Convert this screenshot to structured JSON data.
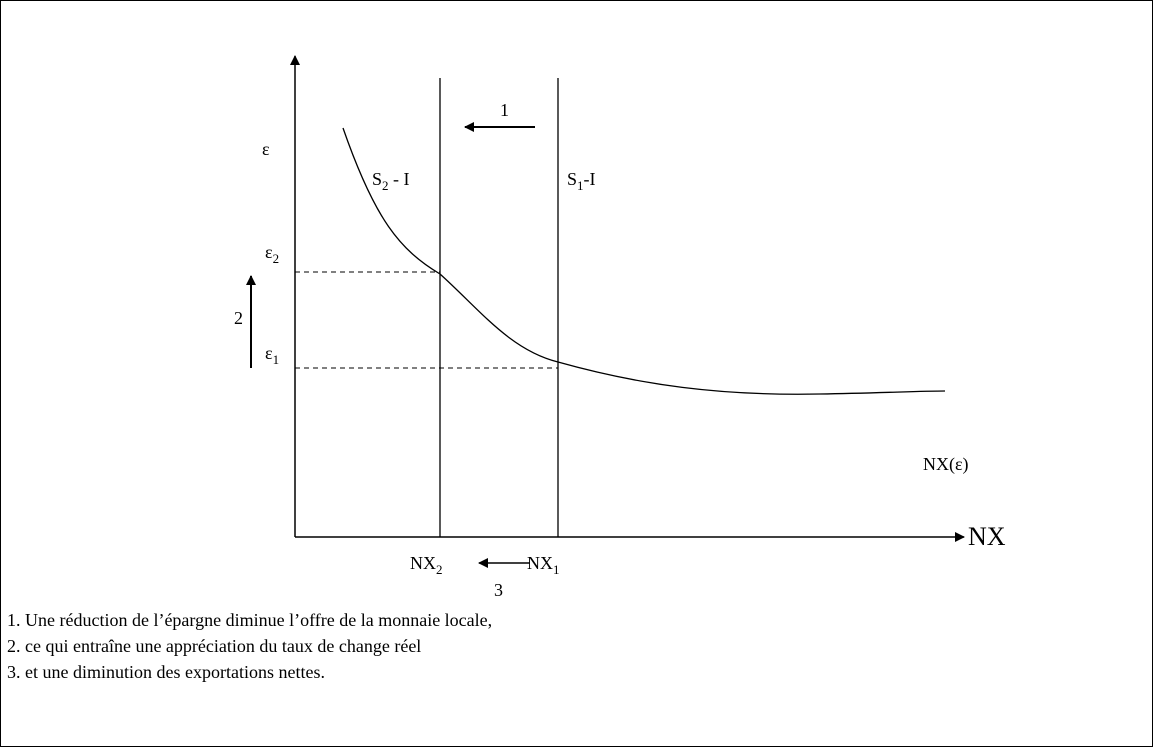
{
  "axes": {
    "y": "ε",
    "x": "NX"
  },
  "levels": [
    {
      "base": "ε",
      "sub": "2"
    },
    {
      "base": "ε",
      "sub": "1"
    }
  ],
  "curves": {
    "savings_2": {
      "base": "S",
      "sub": "2",
      "rest": " - I"
    },
    "savings_1": {
      "base": "S",
      "sub": "1",
      "rest": "-I"
    },
    "net_exports": "NX(ε)"
  },
  "x_points": [
    {
      "base": "NX",
      "sub": "2"
    },
    {
      "base": "NX",
      "sub": "1"
    }
  ],
  "steps": [
    "1",
    "2",
    "3"
  ],
  "notes": [
    "1. Une réduction de l’épargne diminue l’offre de la monnaie locale,",
    "2. ce qui entraîne une appréciation du taux de change réel",
    "3. et une diminution des exportations nettes."
  ]
}
